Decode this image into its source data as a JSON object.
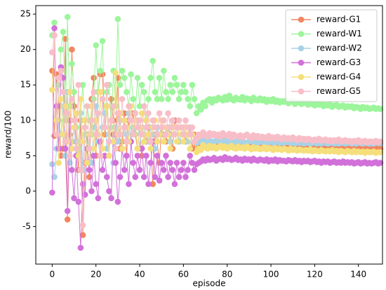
{
  "chart_data": {
    "type": "line",
    "xlabel": "episode",
    "ylabel": "reward/100",
    "x": [
      0,
      1,
      2,
      3,
      4,
      5,
      6,
      7,
      8,
      9,
      10,
      11,
      12,
      13,
      14,
      15,
      16,
      17,
      18,
      19,
      20,
      21,
      22,
      23,
      24,
      25,
      26,
      27,
      28,
      29,
      30,
      31,
      32,
      33,
      34,
      35,
      36,
      37,
      38,
      39,
      40,
      41,
      42,
      43,
      44,
      45,
      46,
      47,
      48,
      49,
      50,
      51,
      52,
      53,
      54,
      55,
      56,
      57,
      58,
      59,
      60,
      61,
      62,
      63,
      64,
      65,
      66,
      67,
      68,
      69,
      70,
      71,
      72,
      73,
      74,
      75,
      76,
      77,
      78,
      79,
      80,
      81,
      82,
      83,
      84,
      85,
      86,
      87,
      88,
      89,
      90,
      91,
      92,
      93,
      94,
      95,
      96,
      97,
      98,
      99,
      100,
      101,
      102,
      103,
      104,
      105,
      106,
      107,
      108,
      109,
      110,
      111,
      112,
      113,
      114,
      115,
      116,
      117,
      118,
      119,
      120,
      121,
      122,
      123,
      124,
      125,
      126,
      127,
      128,
      129,
      130,
      131,
      132,
      133,
      134,
      135,
      136,
      137,
      138,
      139,
      140,
      141,
      142,
      143,
      144,
      145,
      146,
      147,
      148,
      149,
      150
    ],
    "series": [
      {
        "name": "reward-G1",
        "color": "#f28660",
        "values": [
          17,
          7.8,
          16.5,
          12,
          5,
          6,
          21.5,
          -4,
          8,
          20,
          12,
          7,
          3,
          10,
          -6.2,
          4,
          8,
          2,
          13,
          16,
          5,
          14,
          16.5,
          16.5,
          8,
          12,
          5,
          13,
          10,
          7,
          16,
          6,
          7,
          11,
          5,
          10,
          7,
          11,
          8,
          6,
          9,
          5,
          8,
          7,
          9,
          7,
          1,
          8,
          7,
          4,
          9,
          8,
          7,
          9,
          8,
          6,
          10,
          9,
          7,
          8,
          9,
          7,
          8,
          9,
          6,
          8,
          6.5,
          6.8,
          6.6,
          6.9,
          6.4,
          6.7,
          6.8,
          6.5,
          6.6,
          6.9,
          6.7,
          6.5,
          6.8,
          6.6,
          6.4,
          6.7,
          6.5,
          6.8,
          6.6,
          6.5,
          6.4,
          6.6,
          6.7,
          6.5,
          6.3,
          6.6,
          6.5,
          6.4,
          6.7,
          6.5,
          6.3,
          6.5,
          6.4,
          6.6,
          6.3,
          6.5,
          6.4,
          6.2,
          6.5,
          6.4,
          6.3,
          6.4,
          6.2,
          6.5,
          6.3,
          6.4,
          6.2,
          6.3,
          6.4,
          6.2,
          6.3,
          6.1,
          6.4,
          6.2,
          6.3,
          6.1,
          6.2,
          6.3,
          6.1,
          6.2,
          6.2,
          6.0,
          6.3,
          6.1,
          6.2,
          6.0,
          6.1,
          6.2,
          6.0,
          6.1,
          6.1,
          6.0,
          6.2,
          6.0,
          6.1,
          5.9,
          6.0,
          6.1,
          5.9,
          6.0,
          6.0,
          5.9,
          6.1,
          5.9,
          6.0
        ]
      },
      {
        "name": "reward-W1",
        "color": "#9cf59a",
        "values": [
          22,
          23.8,
          8,
          15,
          20,
          22.5,
          10,
          24.6,
          12,
          18,
          14,
          9,
          6,
          11,
          15,
          8,
          12,
          10,
          8,
          13,
          20.6,
          14,
          17,
          21.2,
          9,
          14,
          15,
          9,
          17,
          12,
          24.3,
          15,
          17,
          16,
          14,
          12,
          16.5,
          13,
          11,
          16,
          12,
          15,
          14,
          10,
          13,
          16,
          18.4,
          14,
          13,
          16,
          13,
          17,
          14,
          13,
          15,
          14,
          16,
          15,
          13,
          14,
          15,
          14,
          13,
          12,
          15,
          13,
          11,
          12,
          11.5,
          12.5,
          12,
          12.8,
          13,
          12.5,
          13,
          12.8,
          13.2,
          13,
          12.8,
          13.3,
          12.9,
          13.5,
          13,
          12.8,
          13.2,
          13,
          12.9,
          13.3,
          12.8,
          13.1,
          13,
          12.7,
          13.2,
          12.9,
          12.8,
          13.1,
          12.8,
          13,
          12.6,
          12.9,
          12.7,
          13,
          12.6,
          12.8,
          12.5,
          12.7,
          12.6,
          12.8,
          12.4,
          12.6,
          12.7,
          12.3,
          12.5,
          12.6,
          12.3,
          12.5,
          12.4,
          12.2,
          12.5,
          12.3,
          12.1,
          12.4,
          12.2,
          12.3,
          12.0,
          12.2,
          12.1,
          12.3,
          11.9,
          12.1,
          12.2,
          11.9,
          12.0,
          12.1,
          11.8,
          12.0,
          11.9,
          12.0,
          11.7,
          11.9,
          11.8,
          11.6,
          11.9,
          11.7,
          11.8,
          11.6,
          11.7,
          11.8,
          11.6,
          11.7,
          11.6
        ]
      },
      {
        "name": "reward-W2",
        "color": "#a8d3e6",
        "values": [
          3.8,
          2,
          6,
          10,
          8,
          12,
          5,
          14,
          4,
          7,
          9,
          5,
          7,
          11,
          3,
          10,
          6,
          8,
          4,
          9,
          12,
          7,
          5,
          9,
          11,
          6,
          8,
          10,
          4,
          9,
          7,
          10,
          6,
          9,
          8,
          11,
          7,
          9,
          8,
          10,
          6,
          9,
          8,
          10,
          7,
          9,
          8,
          6,
          9,
          8,
          9,
          7,
          8,
          9,
          7,
          10,
          8,
          9,
          7,
          8,
          9,
          8,
          7,
          9,
          8,
          7,
          6.8,
          7.0,
          6.9,
          7.2,
          7.0,
          6.8,
          7.1,
          7.0,
          6.9,
          7.2,
          7.1,
          6.9,
          7.0,
          7.2,
          6.9,
          7.0,
          7.1,
          6.8,
          7.0,
          6.9,
          7.0,
          7.1,
          6.9,
          6.8,
          7.0,
          7.1,
          6.9,
          7.0,
          6.8,
          7.0,
          6.9,
          7.0,
          6.8,
          6.9,
          7.1,
          6.8,
          6.9,
          7.0,
          6.8,
          6.9,
          6.8,
          7.0,
          6.9,
          6.8,
          6.9,
          6.7,
          6.9,
          6.8,
          6.9,
          6.7,
          6.8,
          6.9,
          6.7,
          6.8,
          6.9,
          6.7,
          6.8,
          6.7,
          6.9,
          6.8,
          6.7,
          6.8,
          6.9,
          6.7,
          6.8,
          6.7,
          6.9,
          6.8,
          6.7,
          6.8,
          6.9,
          6.7,
          6.8,
          6.7,
          6.9,
          6.8,
          6.7,
          6.8,
          6.9,
          6.7,
          6.8,
          6.7,
          6.9,
          6.8,
          6.8
        ]
      },
      {
        "name": "reward-G3",
        "color": "#d271d9",
        "values": [
          -0.2,
          23,
          12,
          6,
          17.5,
          16,
          6,
          -2.8,
          10,
          3,
          -1,
          5,
          -1.5,
          -8,
          1,
          -0.5,
          6,
          3,
          0,
          5,
          1,
          -1,
          7,
          3,
          5,
          2,
          0,
          -1,
          8,
          4,
          -1.5,
          2,
          6,
          3,
          5,
          1,
          7,
          4,
          2,
          5,
          3,
          6,
          2,
          5,
          1,
          4,
          7,
          2,
          5,
          1.5,
          4,
          3,
          5,
          2,
          4,
          3,
          1,
          4,
          2,
          3,
          4,
          2,
          3,
          5,
          4,
          3,
          3.8,
          4.0,
          4.2,
          4.5,
          4.3,
          4.6,
          4.4,
          4.5,
          4.7,
          4.3,
          4.5,
          4.6,
          4.4,
          4.8,
          4.5,
          4.6,
          4.4,
          4.5,
          4.7,
          4.4,
          4.5,
          4.3,
          4.6,
          4.4,
          4.5,
          4.3,
          4.6,
          4.4,
          4.3,
          4.5,
          4.4,
          4.3,
          4.5,
          4.2,
          4.4,
          4.3,
          4.5,
          4.2,
          4.4,
          4.3,
          4.3,
          4.2,
          4.4,
          4.3,
          4.2,
          4.4,
          4.2,
          4.3,
          4.1,
          4.3,
          4.2,
          4.3,
          4.1,
          4.2,
          4.3,
          4.1,
          4.2,
          4.0,
          4.2,
          4.1,
          4.2,
          4.0,
          4.1,
          4.2,
          4.0,
          4.1,
          4.0,
          4.2,
          4.0,
          4.1,
          4.0,
          4.1,
          3.9,
          4.0,
          4.1,
          3.9,
          4.0,
          4.1,
          3.9,
          4.0,
          3.9,
          4.0,
          4.1,
          3.9,
          4.0
        ]
      },
      {
        "name": "reward-G4",
        "color": "#f5df7c",
        "values": [
          14.3,
          22,
          10,
          4,
          13,
          8,
          12,
          7,
          14,
          6,
          9,
          11,
          5,
          13,
          7,
          10,
          4,
          8,
          12,
          6,
          10,
          8,
          14,
          6,
          9,
          12,
          5,
          10,
          7,
          16.7,
          8,
          11,
          6,
          10,
          9,
          7,
          12,
          8,
          10,
          6,
          9,
          11,
          7,
          10,
          8,
          6,
          9,
          10,
          7,
          8,
          10,
          7,
          9,
          8,
          6,
          9,
          8,
          7,
          9,
          8,
          7,
          9,
          8,
          6,
          8,
          7,
          5.5,
          6.0,
          5.8,
          6.5,
          6.2,
          6.0,
          6.4,
          6.1,
          6.3,
          6.0,
          6.2,
          6.4,
          6.1,
          6.3,
          6.0,
          6.2,
          6.4,
          6.1,
          6.0,
          6.3,
          6.1,
          6.2,
          6.0,
          6.3,
          6.1,
          5.9,
          6.2,
          6.0,
          6.1,
          5.9,
          6.0,
          6.2,
          5.9,
          6.1,
          6.0,
          5.8,
          6.1,
          5.9,
          6.0,
          5.8,
          6.0,
          5.9,
          5.7,
          6.0,
          5.8,
          5.9,
          5.7,
          5.9,
          5.8,
          5.7,
          5.8,
          5.7,
          5.9,
          5.6,
          5.8,
          5.7,
          5.6,
          5.8,
          5.7,
          5.6,
          5.7,
          5.6,
          5.8,
          5.6,
          5.7,
          5.5,
          5.7,
          5.6,
          5.5,
          5.7,
          5.6,
          5.5,
          5.7,
          5.5,
          5.6,
          5.5,
          5.6,
          5.4,
          5.6,
          5.5,
          5.5,
          5.6,
          5.4,
          5.5,
          5.5
        ]
      },
      {
        "name": "reward-G5",
        "color": "#f8bec8",
        "values": [
          19.6,
          22,
          8,
          16,
          17,
          14,
          7,
          11,
          5,
          13,
          10,
          6,
          15,
          3,
          -4.8,
          9,
          12,
          6,
          10,
          14,
          8,
          11,
          5,
          13,
          9,
          15,
          7,
          10,
          12,
          6,
          11,
          8,
          13,
          9,
          7,
          12,
          10,
          8,
          11,
          9,
          10,
          8,
          12,
          9,
          11,
          7,
          10,
          9,
          8,
          11,
          9,
          10,
          8,
          11,
          9,
          10,
          8,
          9,
          10,
          9,
          8,
          10,
          9,
          8,
          9,
          7,
          7.5,
          8.0,
          7.8,
          8.3,
          8.0,
          7.7,
          8.2,
          7.9,
          8.1,
          7.8,
          8.0,
          7.7,
          8.2,
          7.9,
          7.8,
          8.1,
          7.6,
          8.0,
          7.8,
          7.7,
          7.9,
          7.6,
          7.8,
          8.0,
          7.7,
          7.5,
          7.9,
          7.6,
          7.8,
          7.5,
          7.7,
          7.6,
          7.4,
          7.8,
          7.5,
          7.6,
          7.4,
          7.7,
          7.5,
          7.3,
          7.6,
          7.4,
          7.5,
          7.3,
          7.6,
          7.4,
          7.2,
          7.5,
          7.3,
          7.4,
          7.2,
          7.4,
          7.3,
          7.1,
          7.3,
          7.2,
          7.4,
          7.1,
          7.2,
          7.3,
          7.1,
          7.2,
          7.0,
          7.2,
          7.1,
          7.3,
          7.0,
          7.1,
          7.2,
          7.0,
          7.1,
          6.9,
          7.1,
          7.0,
          7.2,
          6.9,
          7.0,
          7.1,
          6.9,
          7.0,
          7.0,
          6.9,
          7.1,
          6.9,
          7.0
        ]
      }
    ],
    "xlim": [
      -7.5,
      151
    ],
    "ylim": [
      -10.3,
      26.2
    ],
    "xticks": [
      0,
      20,
      40,
      60,
      80,
      100,
      120,
      140
    ],
    "yticks": [
      -5,
      0,
      5,
      10,
      15,
      20,
      25
    ],
    "legend": "upper right"
  }
}
